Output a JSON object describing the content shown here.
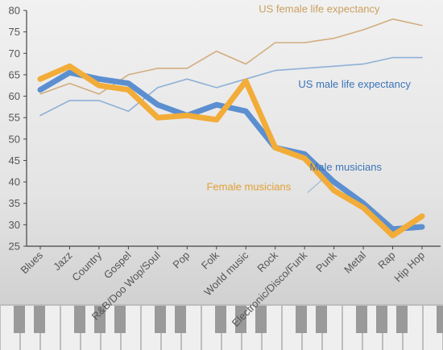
{
  "chart_data": {
    "type": "line",
    "categories": [
      "Blues",
      "Jazz",
      "Country",
      "Gospel",
      "R&B/Doo Wop/Soul",
      "Pop",
      "Folk",
      "World music",
      "Rock",
      "Electronic/Disco/Funk",
      "Punk",
      "Metal",
      "Rap",
      "Hip Hop"
    ],
    "ylim": [
      25,
      80
    ],
    "yticks": [
      25,
      30,
      35,
      40,
      45,
      50,
      55,
      60,
      65,
      70,
      75,
      80
    ],
    "grid": false,
    "series": [
      {
        "name": "US female life expectancy",
        "values": [
          60.5,
          63.0,
          60.5,
          65.0,
          66.5,
          66.5,
          70.5,
          67.5,
          72.5,
          72.5,
          73.5,
          75.5,
          78.0,
          76.5
        ],
        "color": "#d2ad7e",
        "style": "thin"
      },
      {
        "name": "US male life expectancy",
        "values": [
          55.5,
          59.0,
          59.0,
          56.5,
          62.0,
          64.0,
          62.0,
          64.0,
          66.0,
          66.5,
          67.0,
          67.5,
          69.0,
          69.0
        ],
        "color": "#8fb0d6",
        "style": "thin"
      },
      {
        "name": "Male musicians",
        "values": [
          61.5,
          65.5,
          64.0,
          63.0,
          58.0,
          55.5,
          58.0,
          56.5,
          48.0,
          46.5,
          40.0,
          35.0,
          29.0,
          29.5
        ],
        "color": "#5b8fd0",
        "style": "thick"
      },
      {
        "name": "Female musicians",
        "values": [
          64.0,
          67.0,
          62.5,
          61.5,
          55.0,
          55.5,
          54.5,
          63.5,
          48.0,
          45.5,
          38.0,
          34.0,
          27.5,
          32.0
        ],
        "color": "#f2ac38",
        "style": "thick"
      }
    ]
  }
}
